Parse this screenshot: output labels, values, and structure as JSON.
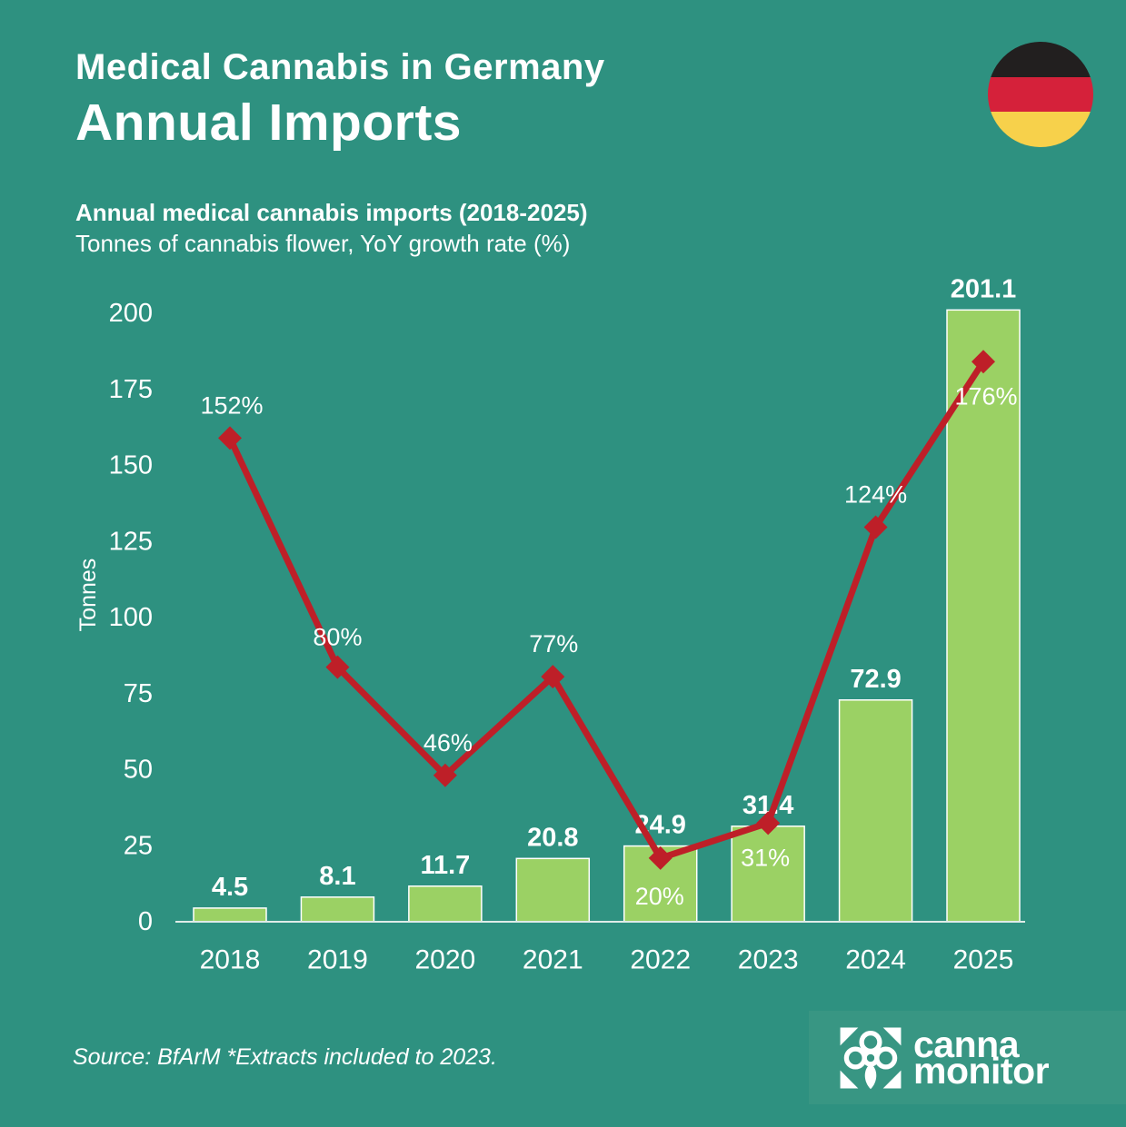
{
  "header": {
    "title_line1": "Medical Cannabis in Germany",
    "title_line2": "Annual Imports",
    "subtitle_bold": "Annual medical cannabis imports (2018-2025)",
    "subtitle_light": "Tonnes of cannabis flower, YoY growth rate (%)"
  },
  "flag": {
    "label": "Germany flag",
    "colors": {
      "black": "#221f1f",
      "red": "#d5213a",
      "gold": "#f7d14b"
    }
  },
  "colors": {
    "background": "#2e9180",
    "bar": "#9bd164",
    "line": "#be1f28",
    "text": "#ffffff",
    "axis": "#dfece8",
    "logo_panel": "#389683"
  },
  "chart_data": {
    "type": "bar",
    "subtype": "bar + line combo",
    "categories": [
      "2018",
      "2019",
      "2020",
      "2021",
      "2022",
      "2023",
      "2024",
      "2025"
    ],
    "series": [
      {
        "name": "Annual imports (tonnes of cannabis flower)",
        "type": "bar",
        "values": [
          4.5,
          8.1,
          11.7,
          20.8,
          24.9,
          31.4,
          72.9,
          201.1
        ],
        "labels": [
          "4.5",
          "8.1",
          "11.7",
          "20.8",
          "24.9",
          "31.4",
          "72.9",
          "201.1"
        ],
        "color": "#9bd164"
      },
      {
        "name": "YoY growth rate (%)",
        "type": "line",
        "values": [
          152,
          80,
          46,
          77,
          20,
          31,
          124,
          176
        ],
        "labels": [
          "152%",
          "80%",
          "46%",
          "77%",
          "20%",
          "31%",
          "124%",
          "176%"
        ],
        "color": "#be1f28",
        "marker": "diamond",
        "label_offsets": [
          [
            2,
            -36
          ],
          [
            0,
            -33
          ],
          [
            3,
            -36
          ],
          [
            1,
            -36
          ],
          [
            -1,
            42
          ],
          [
            -3,
            38
          ],
          [
            0,
            -36
          ],
          [
            3,
            38
          ]
        ]
      }
    ],
    "title": "Annual medical cannabis imports (2018-2025)",
    "xlabel": "",
    "ylabel": "Tonnes",
    "yticks": [
      0,
      25,
      50,
      75,
      100,
      125,
      150,
      175,
      200
    ],
    "ylim": [
      0,
      200
    ],
    "grid": false,
    "legend": "none",
    "secondary_axis_note": "growth % plotted at ~1.046 tonnes-equivalent per percentage point"
  },
  "footer": {
    "source": "Source: BfArM *Extracts included to 2023."
  },
  "logo": {
    "line1": "canna",
    "line2": "monitor",
    "icon": "canna-flower-icon"
  }
}
